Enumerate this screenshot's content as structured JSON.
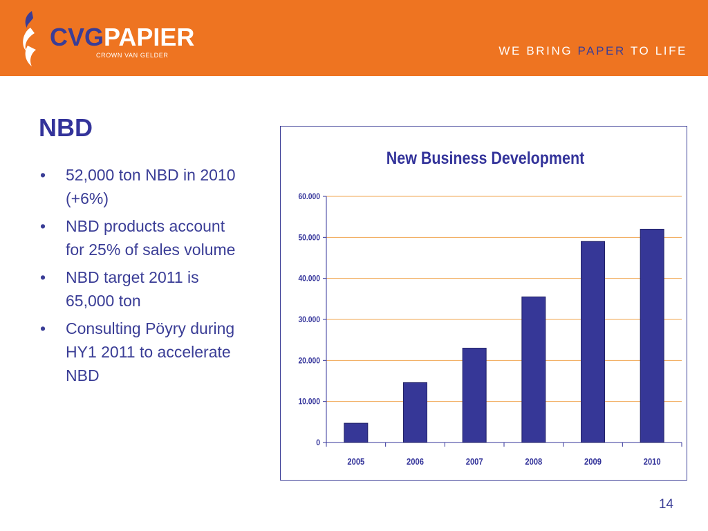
{
  "header": {
    "logo_cvg": "CVG",
    "logo_papier": "PAPIER",
    "logo_sub": "CROWN VAN GELDER",
    "tagline_pre": "WE BRING ",
    "tagline_hl": "PAPER",
    "tagline_post": " TO LIFE",
    "color": "#ee7421"
  },
  "slide": {
    "title": "NBD",
    "bullets": [
      "52,000 ton NBD in 2010 (+6%)",
      "NBD products account for 25% of sales volume",
      "NBD target 2011 is 65,000 ton",
      "Consulting Pöyry during HY1 2011 to accelerate NBD"
    ],
    "page_number": "14"
  },
  "chart_data": {
    "type": "bar",
    "title": "New Business Development",
    "categories": [
      "2005",
      "2006",
      "2007",
      "2008",
      "2009",
      "2010"
    ],
    "values": [
      4700,
      14600,
      23000,
      35500,
      49000,
      52000
    ],
    "ylim": [
      0,
      60000
    ],
    "yticks": [
      0,
      10000,
      20000,
      30000,
      40000,
      50000,
      60000
    ],
    "ytick_labels": [
      "0",
      "10.000",
      "20.000",
      "30.000",
      "40.000",
      "50.000",
      "60.000"
    ],
    "grid": true,
    "legend": "none",
    "bar_color": "#363797",
    "grid_color": "#f0a54f"
  }
}
